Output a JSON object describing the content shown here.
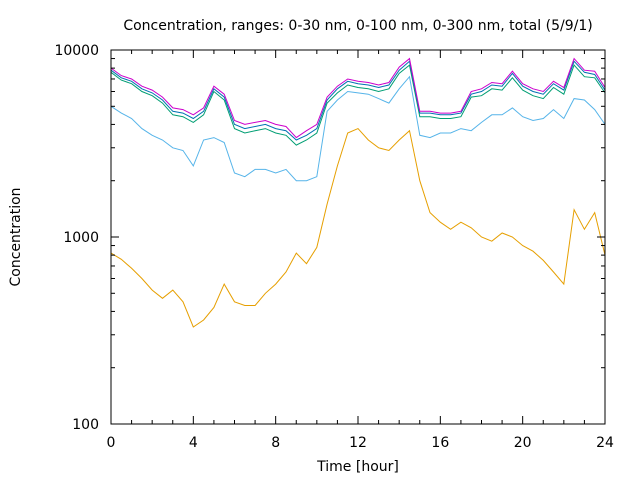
{
  "chart_data": {
    "type": "line",
    "title": "Concentration, ranges: 0-30 nm, 0-100 nm, 0-300 nm, total (5/9/1)",
    "xlabel": "Time [hour]",
    "ylabel": "Concentration",
    "xlim": [
      0,
      24
    ],
    "ylim": [
      100,
      10000
    ],
    "yscale": "log",
    "grid": false,
    "legend": "none",
    "xticks": [
      0,
      4,
      8,
      12,
      16,
      20,
      24
    ],
    "yticks": [
      100,
      1000,
      10000
    ],
    "x": [
      0,
      0.5,
      1,
      1.5,
      2,
      2.5,
      3,
      3.5,
      4,
      4.5,
      5,
      5.5,
      6,
      6.5,
      7,
      7.5,
      8,
      8.5,
      9,
      9.5,
      10,
      10.5,
      11,
      11.5,
      12,
      12.5,
      13,
      13.5,
      14,
      14.5,
      15,
      15.5,
      16,
      16.5,
      17,
      17.5,
      18,
      18.5,
      19,
      19.5,
      20,
      20.5,
      21,
      21.5,
      22,
      22.5,
      23,
      23.5,
      24
    ],
    "series": [
      {
        "color": "#e69f00",
        "values": [
          820,
          760,
          680,
          600,
          520,
          470,
          520,
          450,
          330,
          360,
          420,
          560,
          450,
          430,
          430,
          500,
          560,
          650,
          820,
          720,
          880,
          1500,
          2400,
          3600,
          3800,
          3300,
          3000,
          2900,
          3300,
          3700,
          2000,
          1350,
          1200,
          1100,
          1200,
          1120,
          1000,
          950,
          1050,
          1000,
          900,
          840,
          750,
          650,
          560,
          1400,
          1100,
          1350,
          800
        ]
      },
      {
        "color": "#56b4e9",
        "values": [
          5000,
          4600,
          4300,
          3800,
          3500,
          3300,
          3000,
          2900,
          2400,
          3300,
          3400,
          3200,
          2200,
          2100,
          2300,
          2300,
          2200,
          2300,
          2000,
          2000,
          2100,
          4700,
          5400,
          6000,
          5900,
          5800,
          5500,
          5200,
          6200,
          7200,
          3500,
          3400,
          3600,
          3600,
          3800,
          3700,
          4100,
          4500,
          4500,
          4900,
          4400,
          4200,
          4300,
          4800,
          4300,
          5500,
          5400,
          4800,
          4000
        ]
      },
      {
        "color": "#009e73",
        "values": [
          7600,
          6900,
          6600,
          6000,
          5700,
          5200,
          4500,
          4400,
          4100,
          4500,
          6000,
          5400,
          3800,
          3600,
          3700,
          3800,
          3600,
          3500,
          3100,
          3300,
          3600,
          5200,
          5900,
          6500,
          6300,
          6200,
          6000,
          6200,
          7500,
          8300,
          4400,
          4400,
          4300,
          4300,
          4400,
          5600,
          5700,
          6200,
          6100,
          7100,
          6100,
          5700,
          5500,
          6300,
          5800,
          8300,
          7200,
          7100,
          5900
        ]
      },
      {
        "color": "#0072b2",
        "values": [
          7800,
          7100,
          6800,
          6200,
          5900,
          5400,
          4700,
          4600,
          4300,
          4700,
          6200,
          5600,
          4000,
          3800,
          3900,
          4000,
          3800,
          3700,
          3300,
          3500,
          3800,
          5400,
          6200,
          6800,
          6600,
          6500,
          6300,
          6500,
          7800,
          8700,
          4600,
          4600,
          4500,
          4500,
          4600,
          5800,
          6000,
          6500,
          6400,
          7500,
          6400,
          6000,
          5800,
          6600,
          6100,
          8700,
          7600,
          7400,
          6100
        ]
      },
      {
        "color": "#cc00cc",
        "values": [
          8000,
          7300,
          7000,
          6400,
          6100,
          5600,
          4900,
          4800,
          4500,
          4900,
          6400,
          5800,
          4200,
          4000,
          4100,
          4200,
          4000,
          3900,
          3400,
          3700,
          4000,
          5600,
          6400,
          7000,
          6800,
          6700,
          6500,
          6700,
          8100,
          9000,
          4700,
          4700,
          4600,
          4600,
          4700,
          6000,
          6200,
          6700,
          6600,
          7700,
          6600,
          6200,
          6000,
          6800,
          6300,
          9000,
          7800,
          7700,
          6300
        ]
      }
    ]
  }
}
